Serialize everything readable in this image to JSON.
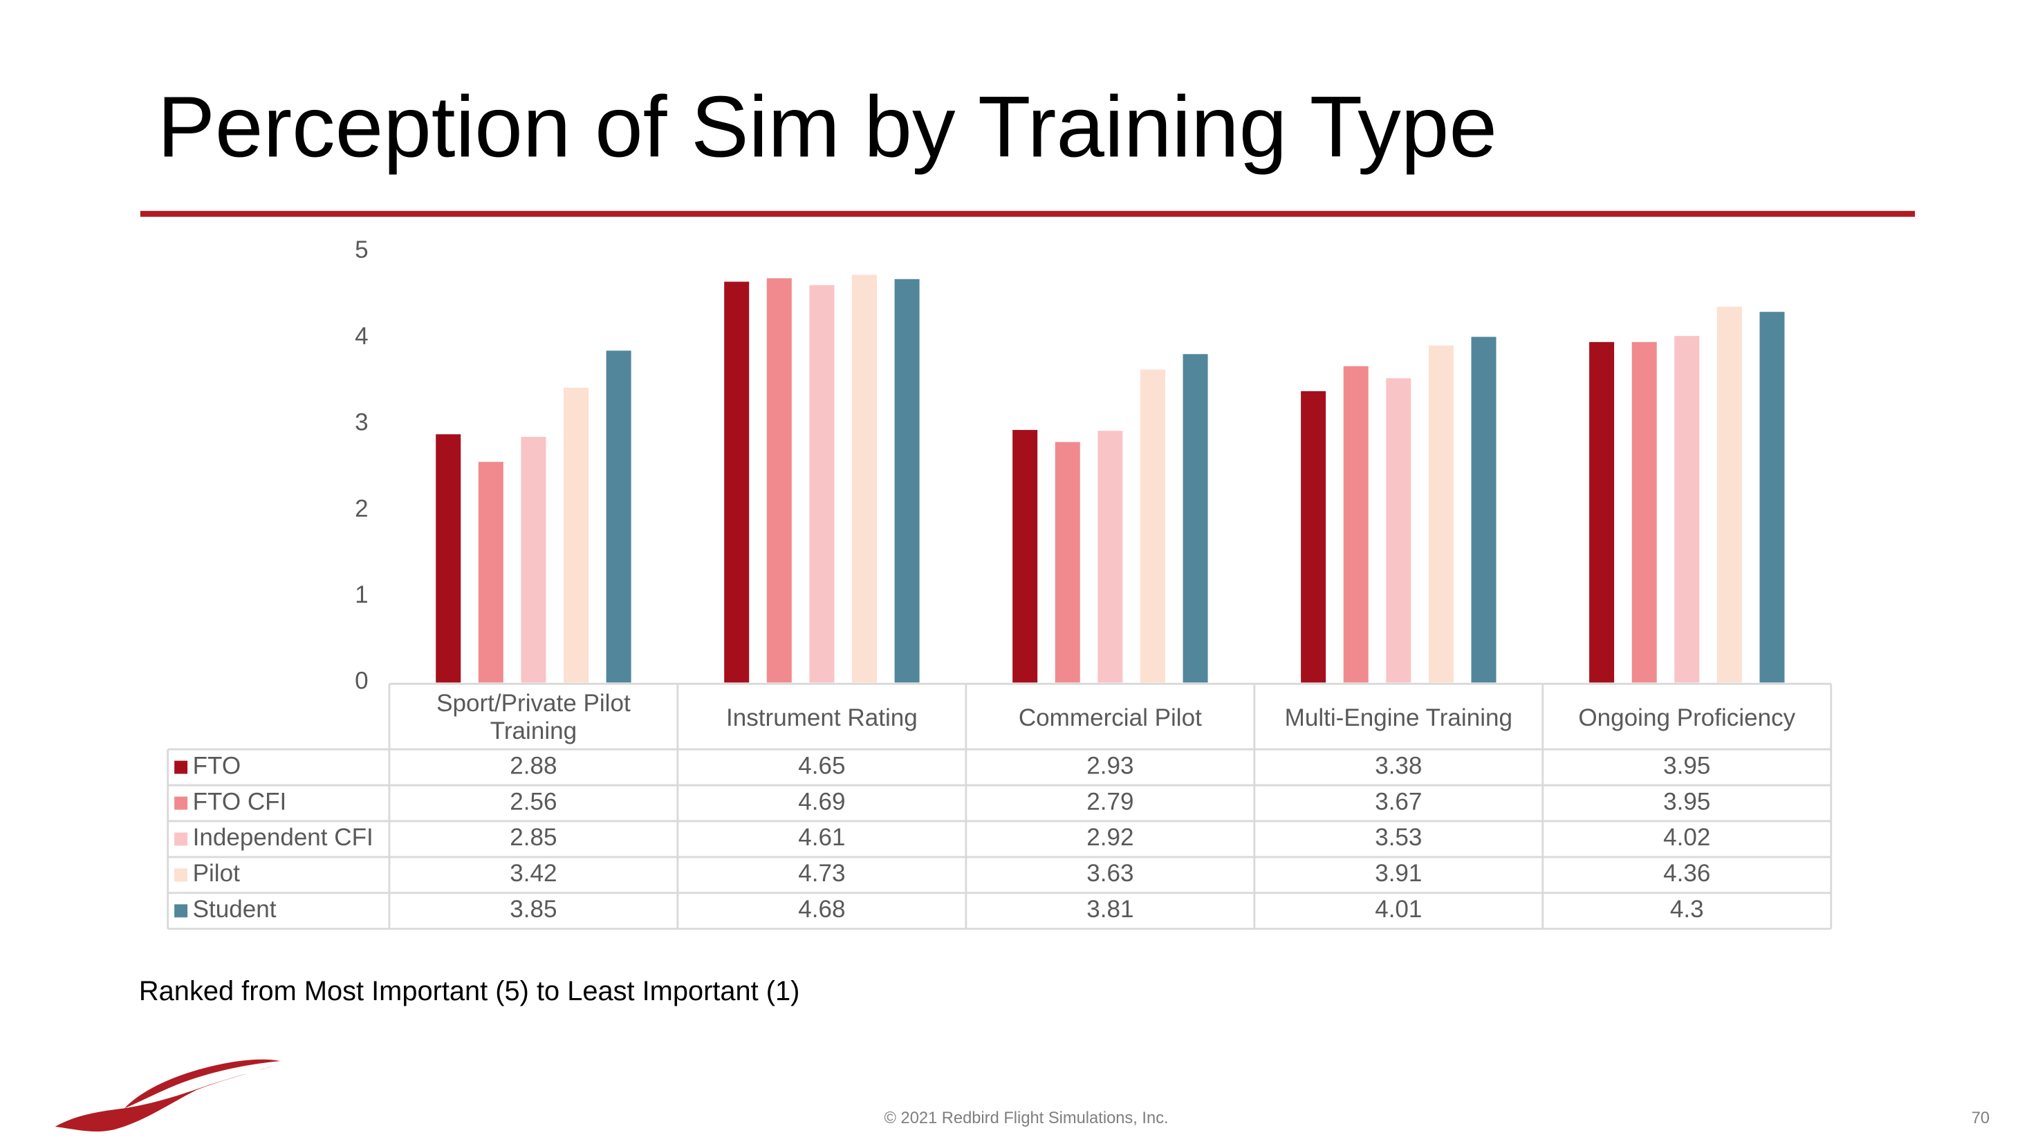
{
  "chart_data": {
    "type": "bar",
    "title": "Perception of Sim by Training Type",
    "categories": [
      "Sport/Private Pilot Training",
      "Instrument Rating",
      "Commercial Pilot",
      "Multi-Engine Training",
      "Ongoing Proficiency"
    ],
    "series": [
      {
        "name": "FTO",
        "color": "#a50f1b",
        "values": [
          2.88,
          4.65,
          2.93,
          3.38,
          3.95
        ]
      },
      {
        "name": "FTO CFI",
        "color": "#f08a8e",
        "values": [
          2.56,
          4.69,
          2.79,
          3.67,
          3.95
        ]
      },
      {
        "name": "Independent CFI",
        "color": "#f9c4c6",
        "values": [
          2.85,
          4.61,
          2.92,
          3.53,
          4.02
        ]
      },
      {
        "name": "Pilot",
        "color": "#fce0d2",
        "values": [
          3.42,
          4.73,
          3.63,
          3.91,
          4.36
        ]
      },
      {
        "name": "Student",
        "color": "#52869b",
        "values": [
          3.85,
          4.68,
          3.81,
          4.01,
          4.3
        ]
      }
    ],
    "ylim": [
      0,
      5
    ],
    "yticks": [
      0,
      1,
      2,
      3,
      4,
      5
    ],
    "grid": false,
    "footnote": "Ranked from Most Important (5) to Least Important (1)"
  },
  "footer": {
    "copyright": "© 2021 Redbird Flight Simulations, Inc.",
    "page_number": "70"
  }
}
